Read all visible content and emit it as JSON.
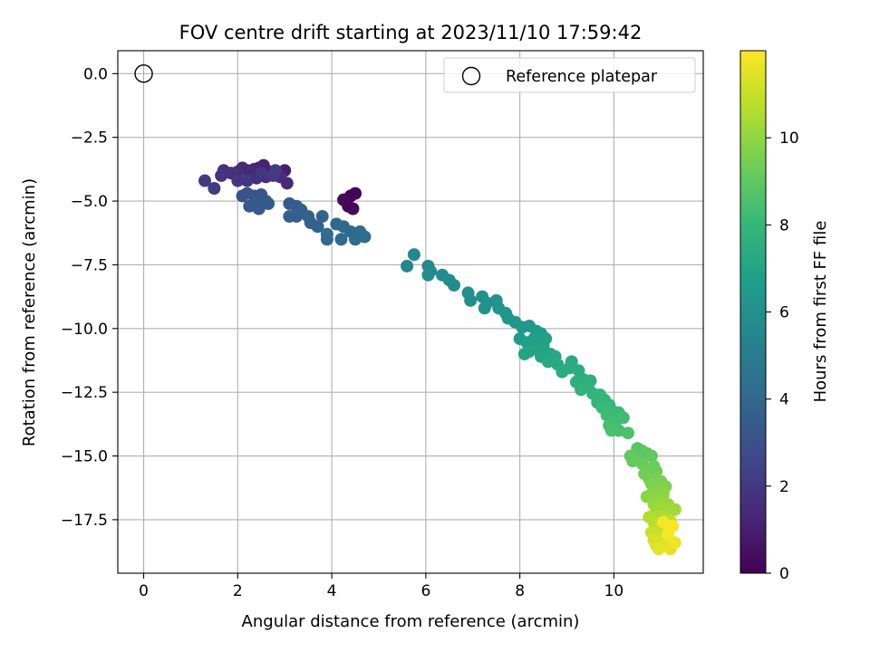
{
  "chart_data": {
    "type": "scatter",
    "title": "FOV centre drift starting at 2023/11/10 17:59:42",
    "xlabel": "Angular distance from reference (arcmin)",
    "ylabel": "Rotation from reference (arcmin)",
    "xlim": [
      -0.55,
      11.9
    ],
    "ylim": [
      -19.6,
      0.9
    ],
    "xticks": [
      0,
      2,
      4,
      6,
      8,
      10
    ],
    "yticks": [
      0.0,
      -2.5,
      -5.0,
      -7.5,
      -10.0,
      -12.5,
      -15.0,
      -17.5
    ],
    "xtick_labels": [
      "0",
      "2",
      "4",
      "6",
      "8",
      "10"
    ],
    "ytick_labels": [
      "0.0",
      "−2.5",
      "−5.0",
      "−7.5",
      "−10.0",
      "−12.5",
      "−15.0",
      "−17.5"
    ],
    "grid": true,
    "legend": {
      "position": "top-right",
      "entries": [
        "Reference platepar"
      ]
    },
    "reference_point": {
      "x": 0,
      "y": 0,
      "marker": "open-circle"
    },
    "colorbar": {
      "label": "Hours from first FF file",
      "colormap": "viridis",
      "range": [
        0,
        12
      ],
      "ticks": [
        0,
        2,
        4,
        6,
        8,
        10
      ],
      "tick_labels": [
        "0",
        "2",
        "4",
        "6",
        "8",
        "10"
      ]
    },
    "series": [
      {
        "values_note_columns": [
          "x",
          "y",
          "hours"
        ],
        "points": [
          [
            4.3,
            -5.0,
            0.05
          ],
          [
            4.4,
            -4.8,
            0.1
          ],
          [
            4.5,
            -4.7,
            0.15
          ],
          [
            4.35,
            -5.2,
            0.2
          ],
          [
            4.45,
            -5.3,
            0.25
          ],
          [
            4.25,
            -4.95,
            0.3
          ],
          [
            3.0,
            -3.8,
            1.0
          ],
          [
            2.85,
            -3.9,
            1.05
          ],
          [
            2.7,
            -3.85,
            1.1
          ],
          [
            2.55,
            -3.6,
            1.15
          ],
          [
            2.45,
            -3.7,
            1.2
          ],
          [
            2.35,
            -3.75,
            1.25
          ],
          [
            2.3,
            -3.9,
            1.3
          ],
          [
            2.2,
            -3.8,
            1.35
          ],
          [
            2.1,
            -3.7,
            1.4
          ],
          [
            3.05,
            -4.3,
            1.45
          ],
          [
            2.9,
            -4.05,
            1.5
          ],
          [
            2.6,
            -4.05,
            1.55
          ],
          [
            2.4,
            -4.1,
            1.6
          ],
          [
            2.0,
            -3.85,
            1.65
          ],
          [
            1.85,
            -3.9,
            1.7
          ],
          [
            1.7,
            -3.8,
            1.75
          ],
          [
            1.65,
            -4.0,
            1.8
          ],
          [
            2.0,
            -4.2,
            1.85
          ],
          [
            2.2,
            -4.2,
            1.9
          ],
          [
            2.5,
            -3.9,
            1.95
          ],
          [
            2.75,
            -4.0,
            2.0
          ],
          [
            1.5,
            -4.5,
            2.05
          ],
          [
            1.3,
            -4.2,
            2.1
          ],
          [
            2.8,
            -3.8,
            2.15
          ],
          [
            2.1,
            -4.8,
            3.0
          ],
          [
            2.2,
            -4.7,
            3.05
          ],
          [
            2.35,
            -4.8,
            3.1
          ],
          [
            2.5,
            -4.75,
            3.15
          ],
          [
            2.6,
            -5.0,
            3.2
          ],
          [
            2.4,
            -5.0,
            3.25
          ],
          [
            2.25,
            -5.2,
            3.3
          ],
          [
            2.45,
            -5.3,
            3.35
          ],
          [
            2.65,
            -5.1,
            3.4
          ],
          [
            3.1,
            -5.1,
            3.45
          ],
          [
            3.25,
            -5.2,
            3.5
          ],
          [
            3.35,
            -5.35,
            3.55
          ],
          [
            3.1,
            -5.6,
            3.6
          ],
          [
            3.25,
            -5.6,
            3.65
          ],
          [
            3.5,
            -5.6,
            3.7
          ],
          [
            3.55,
            -5.85,
            3.75
          ],
          [
            3.7,
            -6.0,
            3.8
          ],
          [
            3.8,
            -5.6,
            3.85
          ],
          [
            3.9,
            -6.5,
            3.9
          ],
          [
            4.1,
            -5.9,
            3.95
          ],
          [
            4.25,
            -6.0,
            4.0
          ],
          [
            4.4,
            -6.2,
            4.05
          ],
          [
            4.2,
            -6.5,
            4.1
          ],
          [
            4.5,
            -6.5,
            4.15
          ],
          [
            4.7,
            -6.4,
            4.2
          ],
          [
            4.6,
            -6.2,
            4.25
          ],
          [
            3.9,
            -6.3,
            4.3
          ],
          [
            5.6,
            -7.55,
            5.5
          ],
          [
            5.75,
            -7.1,
            5.55
          ],
          [
            6.05,
            -7.55,
            5.6
          ],
          [
            6.1,
            -7.75,
            5.65
          ],
          [
            6.05,
            -7.9,
            5.7
          ],
          [
            6.35,
            -7.9,
            5.75
          ],
          [
            6.5,
            -8.1,
            5.8
          ],
          [
            6.6,
            -8.3,
            5.85
          ],
          [
            6.9,
            -8.6,
            5.9
          ],
          [
            6.95,
            -8.9,
            5.95
          ],
          [
            7.2,
            -8.75,
            6.0
          ],
          [
            7.3,
            -9.0,
            6.05
          ],
          [
            7.25,
            -9.2,
            6.1
          ],
          [
            7.5,
            -8.9,
            6.15
          ],
          [
            7.55,
            -9.2,
            6.2
          ],
          [
            7.7,
            -9.4,
            6.25
          ],
          [
            7.75,
            -9.6,
            6.3
          ],
          [
            7.9,
            -9.75,
            6.35
          ],
          [
            8.05,
            -9.95,
            6.4
          ],
          [
            8.2,
            -9.9,
            6.45
          ],
          [
            8.35,
            -10.1,
            6.5
          ],
          [
            8.45,
            -10.2,
            6.55
          ],
          [
            8.0,
            -10.4,
            6.6
          ],
          [
            8.15,
            -10.55,
            6.65
          ],
          [
            8.3,
            -10.4,
            6.7
          ],
          [
            8.4,
            -10.5,
            6.75
          ],
          [
            8.55,
            -10.4,
            6.8
          ],
          [
            8.5,
            -10.7,
            6.85
          ],
          [
            8.35,
            -10.8,
            6.9
          ],
          [
            8.2,
            -10.9,
            6.95
          ],
          [
            8.1,
            -11.0,
            7.0
          ],
          [
            8.45,
            -11.1,
            7.05
          ],
          [
            8.65,
            -11.0,
            7.1
          ],
          [
            8.75,
            -11.1,
            7.15
          ],
          [
            8.6,
            -11.3,
            7.2
          ],
          [
            8.8,
            -11.4,
            7.25
          ],
          [
            9.1,
            -11.3,
            7.3
          ],
          [
            9.05,
            -11.55,
            7.35
          ],
          [
            8.9,
            -11.7,
            7.4
          ],
          [
            9.25,
            -11.65,
            7.45
          ],
          [
            9.35,
            -12.0,
            7.5
          ],
          [
            9.2,
            -12.1,
            7.55
          ],
          [
            9.5,
            -12.05,
            7.6
          ],
          [
            9.45,
            -12.3,
            7.65
          ],
          [
            9.3,
            -12.4,
            7.7
          ],
          [
            9.55,
            -12.55,
            7.8
          ],
          [
            9.7,
            -12.6,
            7.85
          ],
          [
            9.65,
            -12.9,
            7.9
          ],
          [
            9.8,
            -12.8,
            7.95
          ],
          [
            9.9,
            -13.0,
            8.0
          ],
          [
            9.75,
            -13.1,
            8.05
          ],
          [
            9.95,
            -13.2,
            8.1
          ],
          [
            10.1,
            -13.3,
            8.15
          ],
          [
            9.85,
            -13.4,
            8.2
          ],
          [
            10.2,
            -13.5,
            8.25
          ],
          [
            10.05,
            -13.6,
            8.3
          ],
          [
            9.9,
            -13.8,
            8.35
          ],
          [
            10.1,
            -14.0,
            8.45
          ],
          [
            9.95,
            -14.0,
            8.5
          ],
          [
            10.3,
            -14.1,
            8.55
          ],
          [
            10.5,
            -14.7,
            8.8
          ],
          [
            10.6,
            -14.8,
            8.85
          ],
          [
            10.7,
            -14.9,
            8.9
          ],
          [
            10.55,
            -15.1,
            8.95
          ],
          [
            10.8,
            -15.0,
            9.0
          ],
          [
            10.35,
            -15.0,
            9.05
          ],
          [
            10.4,
            -15.2,
            9.1
          ],
          [
            10.6,
            -15.3,
            9.15
          ],
          [
            10.7,
            -15.5,
            9.2
          ],
          [
            10.85,
            -15.4,
            9.25
          ],
          [
            10.9,
            -15.6,
            9.3
          ],
          [
            10.65,
            -15.7,
            9.35
          ],
          [
            10.75,
            -15.9,
            9.4
          ],
          [
            10.9,
            -15.9,
            9.5
          ],
          [
            11.0,
            -16.0,
            9.55
          ],
          [
            10.8,
            -16.1,
            9.6
          ],
          [
            11.1,
            -16.2,
            9.65
          ],
          [
            10.95,
            -16.3,
            9.7
          ],
          [
            10.8,
            -16.5,
            9.8
          ],
          [
            10.7,
            -16.6,
            9.85
          ],
          [
            11.05,
            -16.5,
            9.9
          ],
          [
            10.9,
            -16.7,
            9.95
          ],
          [
            11.0,
            -16.8,
            10.0
          ],
          [
            10.85,
            -16.9,
            10.05
          ],
          [
            11.15,
            -16.9,
            10.1
          ],
          [
            11.0,
            -17.0,
            10.15
          ],
          [
            10.9,
            -17.1,
            10.2
          ],
          [
            11.1,
            -17.1,
            10.25
          ],
          [
            11.3,
            -17.1,
            10.3
          ],
          [
            11.15,
            -17.3,
            10.4
          ],
          [
            10.95,
            -17.35,
            10.45
          ],
          [
            11.05,
            -17.4,
            10.5
          ],
          [
            10.75,
            -17.4,
            10.6
          ],
          [
            10.85,
            -17.6,
            10.7
          ],
          [
            11.2,
            -17.55,
            10.75
          ],
          [
            11.0,
            -17.7,
            10.8
          ],
          [
            11.1,
            -17.8,
            10.85
          ],
          [
            10.95,
            -17.9,
            10.9
          ],
          [
            11.15,
            -17.95,
            10.95
          ],
          [
            10.8,
            -18.0,
            11.0
          ],
          [
            10.9,
            -18.1,
            11.05
          ],
          [
            11.05,
            -18.15,
            11.1
          ],
          [
            10.85,
            -18.3,
            11.2
          ],
          [
            11.0,
            -18.35,
            11.25
          ],
          [
            10.9,
            -18.5,
            11.3
          ],
          [
            11.1,
            -18.5,
            11.4
          ],
          [
            10.95,
            -18.65,
            11.5
          ],
          [
            11.2,
            -18.65,
            11.6
          ],
          [
            11.3,
            -18.4,
            11.7
          ],
          [
            11.05,
            -17.6,
            11.8
          ],
          [
            11.15,
            -18.05,
            11.85
          ],
          [
            11.25,
            -17.75,
            11.9
          ]
        ]
      }
    ]
  }
}
